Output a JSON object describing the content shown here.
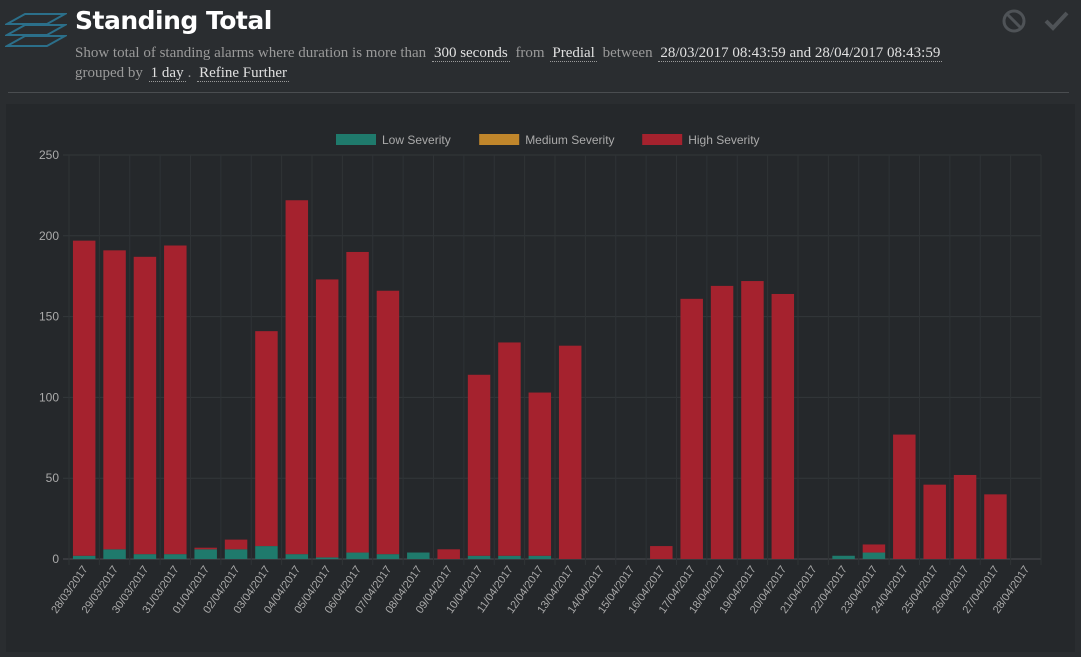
{
  "header": {
    "title": "Standing Total",
    "desc_prefix": "Show total of standing alarms where duration is more than",
    "duration": "300 seconds",
    "from_label": "from",
    "source": "Predial",
    "between_label": "between",
    "range": "28/03/2017 08:43:59 and 28/04/2017 08:43:59",
    "grouped_label": "grouped by",
    "group": "1 day",
    "dot": ".",
    "refine": "Refine Further",
    "icons": [
      "layers-icon",
      "cancel-icon",
      "check-icon"
    ]
  },
  "colors": {
    "low": "#1f7a6c",
    "medium": "#c0862b",
    "high": "#a5222e",
    "background": "#2a2d30",
    "panel": "#25282b"
  },
  "chart_data": {
    "type": "bar",
    "stacked": true,
    "legend_position": "top",
    "grid": true,
    "ylim": [
      0,
      250
    ],
    "yticks": [
      0,
      50,
      100,
      150,
      200,
      250
    ],
    "categories": [
      "28/03/2017",
      "29/03/2017",
      "30/03/2017",
      "31/03/2017",
      "01/04/2017",
      "02/04/2017",
      "03/04/2017",
      "04/04/2017",
      "05/04/2017",
      "06/04/2017",
      "07/04/2017",
      "08/04/2017",
      "09/04/2017",
      "10/04/2017",
      "11/04/2017",
      "12/04/2017",
      "13/04/2017",
      "14/04/2017",
      "15/04/2017",
      "16/04/2017",
      "17/04/2017",
      "18/04/2017",
      "19/04/2017",
      "20/04/2017",
      "21/04/2017",
      "22/04/2017",
      "23/04/2017",
      "24/04/2017",
      "25/04/2017",
      "26/04/2017",
      "27/04/2017",
      "28/04/2017"
    ],
    "series": [
      {
        "name": "Low Severity",
        "color": "#1f7a6c",
        "values": [
          2,
          6,
          3,
          3,
          6,
          6,
          8,
          3,
          1,
          4,
          3,
          4,
          0,
          2,
          2,
          2,
          0,
          0,
          0,
          0,
          0,
          0,
          0,
          0,
          0,
          2,
          4,
          0,
          0,
          0,
          0,
          0
        ]
      },
      {
        "name": "Medium Severity",
        "color": "#c0862b",
        "values": [
          0,
          0,
          0,
          0,
          0,
          0,
          0,
          0,
          0,
          0,
          0,
          0,
          0,
          0,
          0,
          0,
          0,
          0,
          0,
          0,
          0,
          0,
          0,
          0,
          0,
          0,
          0,
          0,
          0,
          0,
          0,
          0
        ]
      },
      {
        "name": "High Severity",
        "color": "#a5222e",
        "values": [
          195,
          185,
          184,
          191,
          1,
          6,
          133,
          219,
          172,
          186,
          163,
          0,
          6,
          112,
          132,
          101,
          132,
          0,
          0,
          8,
          161,
          169,
          172,
          164,
          0,
          0,
          5,
          77,
          46,
          52,
          40,
          0
        ]
      }
    ]
  }
}
